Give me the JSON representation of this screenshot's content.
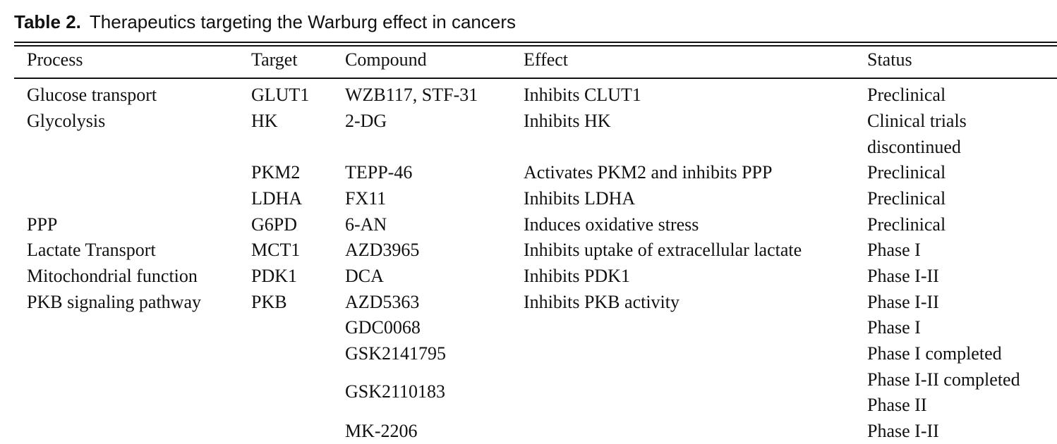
{
  "table": {
    "label": "Table 2.",
    "title": "Therapeutics targeting the Warburg effect in cancers",
    "headers": {
      "process": "Process",
      "target": "Target",
      "compound": "Compound",
      "effect": "Effect",
      "status": "Status"
    },
    "rows": [
      {
        "process": "Glucose transport",
        "target": "GLUT1",
        "compound": "WZB117, STF-31",
        "effect": "Inhibits CLUT1",
        "status": "Preclinical"
      },
      {
        "process": "Glycolysis",
        "target": "HK",
        "compound": "2-DG",
        "effect": "Inhibits HK",
        "status": "Clinical trials",
        "status_cont": "discontinued"
      },
      {
        "process": "",
        "target": "PKM2",
        "compound": "TEPP-46",
        "effect": "Activates PKM2 and inhibits PPP",
        "status": "Preclinical"
      },
      {
        "process": "",
        "target": "LDHA",
        "compound": "FX11",
        "effect": "Inhibits LDHA",
        "status": "Preclinical"
      },
      {
        "process": "PPP",
        "target": "G6PD",
        "compound": "6-AN",
        "effect": "Induces oxidative stress",
        "status": "Preclinical"
      },
      {
        "process": "Lactate Transport",
        "target": "MCT1",
        "compound": "AZD3965",
        "effect": "Inhibits uptake of extracellular lactate",
        "status": "Phase I"
      },
      {
        "process": "Mitochondrial function",
        "target": "PDK1",
        "compound": "DCA",
        "effect": "Inhibits PDK1",
        "status": "Phase I-II"
      },
      {
        "process": "PKB signaling pathway",
        "target": "PKB",
        "compound": "AZD5363",
        "effect": "Inhibits PKB activity",
        "status": "Phase I-II"
      },
      {
        "process": "",
        "target": "",
        "compound": "GDC0068",
        "effect": "",
        "status": "Phase I"
      },
      {
        "process": "",
        "target": "",
        "compound": "GSK2141795",
        "effect": "",
        "status": "Phase I completed"
      },
      {
        "process": "",
        "target": "",
        "compound": "GSK2110183",
        "effect": "",
        "status": "Phase I-II completed",
        "status_cont": "Phase II"
      },
      {
        "process": "",
        "target": "",
        "compound": "MK-2206",
        "effect": "",
        "status": "Phase I-II"
      }
    ]
  }
}
